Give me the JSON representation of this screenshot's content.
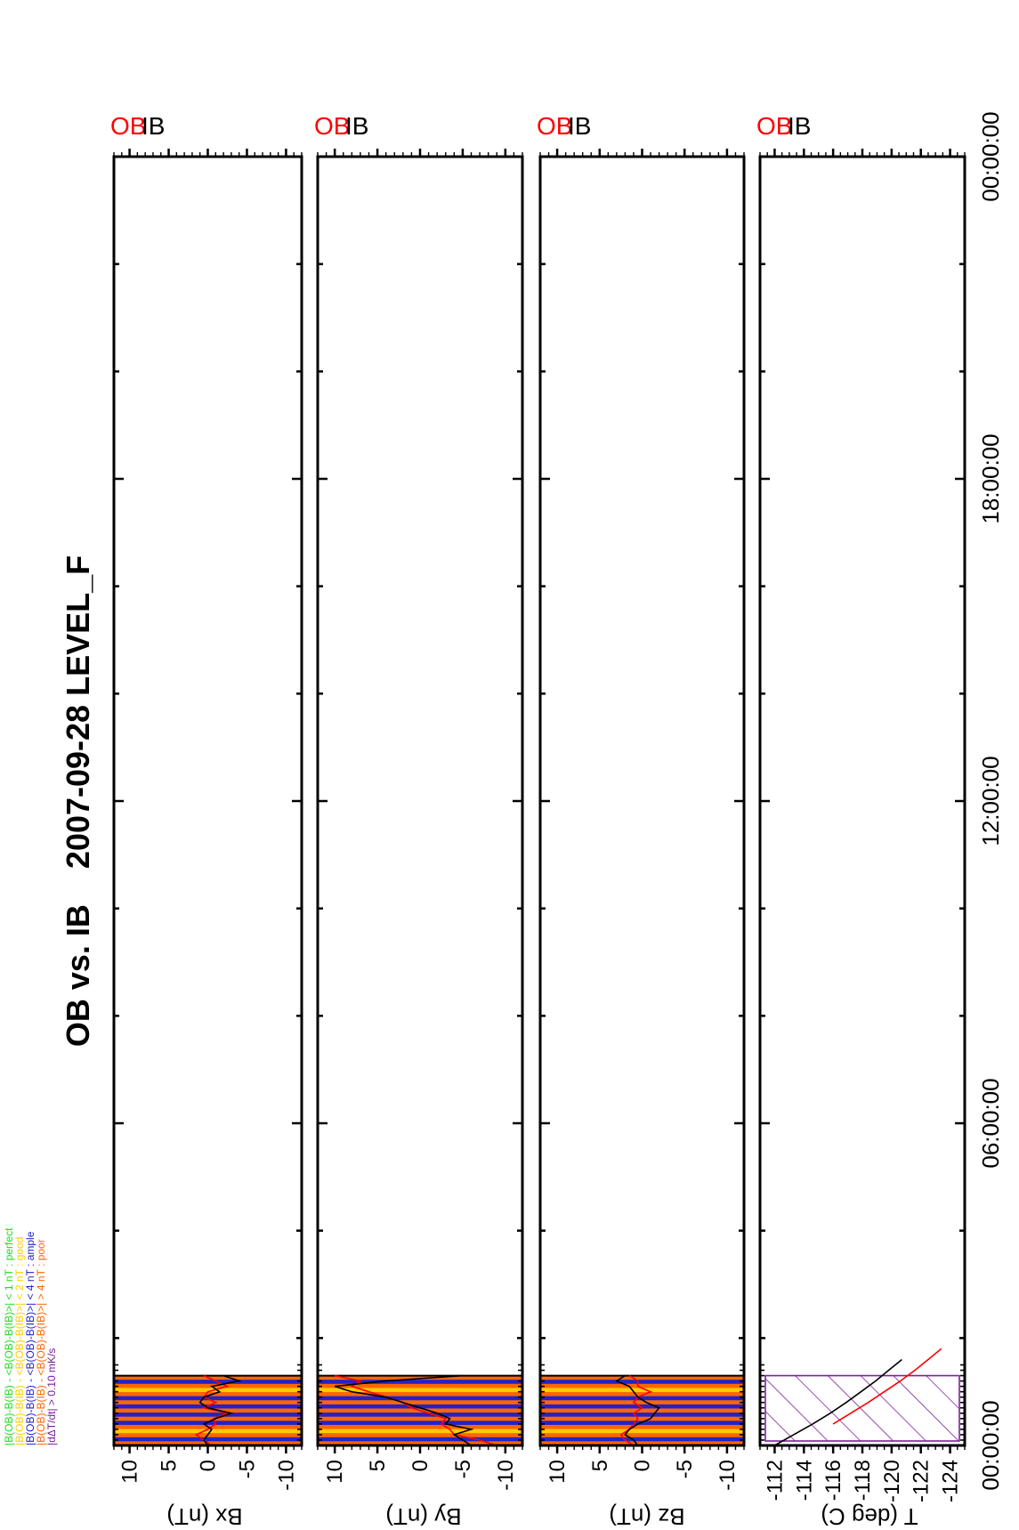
{
  "title": "OB vs. IB    2007-09-28 LEVEL_F",
  "legend": [
    {
      "text": "|B(OB)-B(IB) - <B(OB)-B(IB)>| < 1 nT  : perfect",
      "color": "#22dd22"
    },
    {
      "text": "|B(OB)-B(IB) - <B(OB)-B(IB)>| < 2 nT  : good",
      "color": "#ffcc00"
    },
    {
      "text": "|B(OB)-B(IB) - <B(OB)-B(IB)>| < 4 nT  : ample",
      "color": "#2222cc"
    },
    {
      "text": "|B(OB)-B(IB) - <B(OB)-B(IB)>| > 4 nT  : poor",
      "color": "#ff6600"
    },
    {
      "text": "|dΔT/dt|            > 0.10 mK/s",
      "color": "#7a1fa0"
    }
  ],
  "colors": {
    "ob": "#ff0000",
    "ib": "#000000",
    "perfect": "#22dd22",
    "good": "#ffcc00",
    "ample": "#2222cc",
    "poor": "#ff6600",
    "temp_rate": "#7a1fa0"
  },
  "chart_data": {
    "type": "line",
    "x_axis": {
      "label": "",
      "range": [
        "00:00:00",
        "24:00:00"
      ],
      "tick_labels": [
        "00:00:00",
        "06:00:00",
        "12:00:00",
        "18:00:00",
        "00:00:00"
      ]
    },
    "panels": [
      {
        "ylabel": "Bx (nT)",
        "ylim": [
          -12,
          12
        ],
        "tick_labels": [
          "10",
          "5",
          "0",
          "-5",
          "-10"
        ],
        "series_labels": [
          "OB",
          "IB"
        ],
        "quality_bands_hours": {
          "range": [
            0.0,
            1.3
          ],
          "sequence": [
            "poor",
            "ample",
            "poor",
            "good",
            "poor",
            "ample",
            "poor",
            "ample",
            "poor",
            "ample",
            "poor",
            "ample",
            "poor",
            "good",
            "poor",
            "ample",
            "poor"
          ]
        },
        "series": [
          {
            "name": "OB",
            "x": [
              0.0,
              0.1,
              0.2,
              0.3,
              0.4,
              0.5,
              0.6,
              0.7,
              0.8,
              0.9,
              1.0,
              1.1,
              1.2,
              1.3
            ],
            "values": [
              -0.5,
              0.5,
              1.5,
              0.0,
              -1.0,
              -0.8,
              -2.5,
              0.5,
              -1.0,
              0.5,
              0.0,
              -2.5,
              -1.0,
              0.5
            ]
          },
          {
            "name": "IB",
            "x": [
              0.0,
              0.1,
              0.2,
              0.3,
              0.4,
              0.5,
              0.6,
              0.7,
              0.8,
              0.9,
              1.0,
              1.1,
              1.2,
              1.3
            ],
            "values": [
              0.0,
              0.5,
              0.0,
              -0.5,
              0.5,
              -1.0,
              -3.0,
              0.0,
              1.0,
              0.5,
              -1.5,
              -0.5,
              -4.0,
              -2.0
            ]
          }
        ]
      },
      {
        "ylabel": "By (nT)",
        "ylim": [
          -12,
          12
        ],
        "tick_labels": [
          "10",
          "5",
          "0",
          "-5",
          "-10"
        ],
        "series_labels": [
          "OB",
          "IB"
        ],
        "quality_bands_hours": {
          "range": [
            0.0,
            1.3
          ],
          "sequence": [
            "poor",
            "ample",
            "poor",
            "good",
            "poor",
            "ample",
            "poor",
            "ample",
            "poor",
            "ample",
            "poor",
            "ample",
            "poor",
            "good",
            "poor",
            "ample",
            "poor"
          ]
        },
        "series": [
          {
            "name": "OB",
            "x": [
              0.0,
              0.1,
              0.2,
              0.3,
              0.4,
              0.5,
              0.6,
              0.7,
              0.8,
              0.9,
              1.0,
              1.1,
              1.2,
              1.3
            ],
            "values": [
              -9.0,
              -7.0,
              -4.0,
              -3.5,
              -2.5,
              -3.0,
              -1.0,
              1.0,
              2.0,
              4.0,
              6.0,
              8.0,
              7.0,
              10.0
            ]
          },
          {
            "name": "IB",
            "x": [
              0.0,
              0.1,
              0.2,
              0.3,
              0.4,
              0.5,
              0.6,
              0.7,
              0.8,
              0.9,
              1.0,
              1.1,
              1.2,
              1.3
            ],
            "values": [
              -6.0,
              -5.0,
              -4.0,
              -6.0,
              -3.0,
              -3.5,
              -2.0,
              0.0,
              2.0,
              4.0,
              8.0,
              10.0,
              4.0,
              -5.0
            ]
          }
        ]
      },
      {
        "ylabel": "Bz (nT)",
        "ylim": [
          -12,
          12
        ],
        "tick_labels": [
          "10",
          "5",
          "0",
          "-5",
          "-10"
        ],
        "series_labels": [
          "OB",
          "IB"
        ],
        "quality_bands_hours": {
          "range": [
            0.0,
            1.3
          ],
          "sequence": [
            "poor",
            "ample",
            "poor",
            "good",
            "poor",
            "ample",
            "poor",
            "ample",
            "poor",
            "ample",
            "poor",
            "ample",
            "poor",
            "good",
            "poor",
            "ample",
            "poor"
          ]
        },
        "series": [
          {
            "name": "OB",
            "x": [
              0.0,
              0.1,
              0.2,
              0.3,
              0.4,
              0.5,
              0.6,
              0.7,
              0.8,
              0.9,
              1.0,
              1.1,
              1.2,
              1.3
            ],
            "values": [
              1.0,
              2.0,
              2.5,
              1.5,
              1.0,
              0.5,
              1.0,
              0.0,
              1.0,
              0.5,
              -1.0,
              0.5,
              0.5,
              1.5
            ]
          },
          {
            "name": "IB",
            "x": [
              0.0,
              0.1,
              0.2,
              0.3,
              0.4,
              0.5,
              0.6,
              0.7,
              0.8,
              0.9,
              1.0,
              1.1,
              1.2,
              1.3
            ],
            "values": [
              0.5,
              1.0,
              2.0,
              1.5,
              0.5,
              -1.0,
              -1.5,
              -2.0,
              -0.5,
              0.5,
              1.0,
              1.5,
              3.0,
              2.0
            ]
          }
        ]
      },
      {
        "ylabel": "T (deg C)",
        "ylim": [
          -125,
          -111
        ],
        "tick_labels": [
          "-112",
          "-114",
          "-116",
          "-118",
          "-120",
          "-122",
          "-124"
        ],
        "series_labels": [
          "OB",
          "IB"
        ],
        "rate_exceed_hours": [
          0.0,
          1.3
        ],
        "series": [
          {
            "name": "OB",
            "x": [
              0.4,
              0.6,
              0.8,
              1.0,
              1.2,
              1.4,
              1.6,
              1.8
            ],
            "values": [
              -116.0,
              -117.2,
              -118.4,
              -119.5,
              -120.6,
              -121.6,
              -122.5,
              -123.4
            ]
          },
          {
            "name": "IB",
            "x": [
              0.0,
              0.2,
              0.4,
              0.6,
              0.8,
              1.0,
              1.2,
              1.4,
              1.6
            ],
            "values": [
              -112.0,
              -113.3,
              -114.6,
              -115.8,
              -116.9,
              -117.9,
              -118.9,
              -119.8,
              -120.7
            ]
          }
        ]
      }
    ]
  }
}
